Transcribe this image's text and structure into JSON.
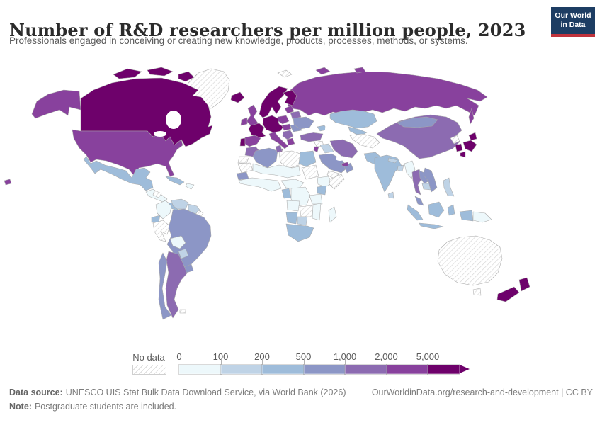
{
  "header": {
    "title": "Number of R&D researchers per million people, 2023",
    "subtitle": "Professionals engaged in conceiving or creating new knowledge, products, processes, methods, or systems."
  },
  "logo": {
    "line1": "Our World",
    "line2": "in Data",
    "bg_color": "#1d3d63",
    "accent_color": "#c0333c"
  },
  "chart_data": {
    "type": "choropleth_map",
    "title": "Number of R&D researchers per million people",
    "year": "2023",
    "legend": {
      "no_data_label": "No data",
      "tick_labels": [
        "0",
        "100",
        "200",
        "500",
        "1,000",
        "2,000",
        "5,000"
      ],
      "ranges": [
        "0-100",
        "100-200",
        "200-500",
        "500-1,000",
        "1,000-2,000",
        "2,000-5,000",
        "5,000+"
      ],
      "colors": [
        "#edf8fb",
        "#bfd3e6",
        "#9ebcda",
        "#8c96c6",
        "#8c6bb1",
        "#88419d",
        "#6e016b"
      ],
      "no_data_pattern": "diagonal-hatch",
      "position": "bottom"
    },
    "regions": [
      {
        "id": "canada",
        "name": "Canada",
        "bucket": 6
      },
      {
        "id": "usa",
        "name": "United States",
        "bucket": 5
      },
      {
        "id": "greenland",
        "name": "Greenland",
        "bucket": "no-data"
      },
      {
        "id": "mexico",
        "name": "Mexico",
        "bucket": 2
      },
      {
        "id": "central-america",
        "name": "Guatemala and Central America",
        "bucket": 0
      },
      {
        "id": "honduras",
        "name": "Honduras",
        "bucket": "no-data"
      },
      {
        "id": "costa-rica-panama",
        "name": "Costa Rica and Panama",
        "bucket": 2
      },
      {
        "id": "cuba",
        "name": "Cuba",
        "bucket": 2
      },
      {
        "id": "hispaniola",
        "name": "Hispaniola",
        "bucket": 0
      },
      {
        "id": "colombia",
        "name": "Colombia",
        "bucket": 0
      },
      {
        "id": "venezuela",
        "name": "Venezuela",
        "bucket": 1
      },
      {
        "id": "guyanas",
        "name": "Guyana and Suriname",
        "bucket": 1
      },
      {
        "id": "french-guiana",
        "name": "French Guiana",
        "bucket": "no-data"
      },
      {
        "id": "ecuador",
        "name": "Ecuador",
        "bucket": 2
      },
      {
        "id": "peru",
        "name": "Peru",
        "bucket": "no-data"
      },
      {
        "id": "brazil",
        "name": "Brazil",
        "bucket": 3
      },
      {
        "id": "bolivia",
        "name": "Bolivia",
        "bucket": 0
      },
      {
        "id": "paraguay",
        "name": "Paraguay",
        "bucket": 1
      },
      {
        "id": "uruguay",
        "name": "Uruguay",
        "bucket": 3
      },
      {
        "id": "argentina",
        "name": "Argentina",
        "bucket": 4
      },
      {
        "id": "chile",
        "name": "Chile",
        "bucket": 3
      },
      {
        "id": "falkland-islands",
        "name": "Falkland Islands",
        "bucket": "no-data"
      },
      {
        "id": "iceland",
        "name": "Iceland",
        "bucket": 6
      },
      {
        "id": "uk",
        "name": "United Kingdom",
        "bucket": 5
      },
      {
        "id": "ireland",
        "name": "Ireland",
        "bucket": 5
      },
      {
        "id": "norway-sweden",
        "name": "Norway and Sweden",
        "bucket": 6
      },
      {
        "id": "finland",
        "name": "Finland",
        "bucket": 6
      },
      {
        "id": "denmark",
        "name": "Denmark",
        "bucket": 6
      },
      {
        "id": "france",
        "name": "France",
        "bucket": 6
      },
      {
        "id": "west-europe",
        "name": "Germany, Benelux, Alps and Czechia",
        "bucket": 6
      },
      {
        "id": "portugal",
        "name": "Portugal",
        "bucket": 6
      },
      {
        "id": "spain",
        "name": "Spain",
        "bucket": 5
      },
      {
        "id": "italy",
        "name": "Italy",
        "bucket": 5
      },
      {
        "id": "poland",
        "name": "Poland",
        "bucket": 5
      },
      {
        "id": "baltics",
        "name": "Baltic states",
        "bucket": 5
      },
      {
        "id": "belarus",
        "name": "Belarus",
        "bucket": 4
      },
      {
        "id": "central-europe",
        "name": "Hungary and Slovakia",
        "bucket": 5
      },
      {
        "id": "romania",
        "name": "Romania",
        "bucket": 3
      },
      {
        "id": "balkans",
        "name": "Western Balkans",
        "bucket": 4
      },
      {
        "id": "greece",
        "name": "Greece",
        "bucket": 5
      },
      {
        "id": "ukraine",
        "name": "Ukraine",
        "bucket": 3
      },
      {
        "id": "russia",
        "name": "Russia",
        "bucket": 5
      },
      {
        "id": "svalbard",
        "name": "Svalbard",
        "bucket": "no-data"
      },
      {
        "id": "kazakhstan",
        "name": "Kazakhstan",
        "bucket": 2
      },
      {
        "id": "central-asia",
        "name": "Uzbekistan and Central Asia",
        "bucket": 2
      },
      {
        "id": "turkmenistan-afghanistan",
        "name": "Turkmenistan and Afghanistan",
        "bucket": "no-data"
      },
      {
        "id": "caucasus",
        "name": "Caucasus",
        "bucket": 2
      },
      {
        "id": "turkey",
        "name": "Turkey",
        "bucket": 4
      },
      {
        "id": "syria",
        "name": "Syria",
        "bucket": "no-data"
      },
      {
        "id": "iraq",
        "name": "Iraq",
        "bucket": 1
      },
      {
        "id": "iran",
        "name": "Iran",
        "bucket": 4
      },
      {
        "id": "saudi-arabia",
        "name": "Saudi Arabia",
        "bucket": 3
      },
      {
        "id": "yemen",
        "name": "Yemen",
        "bucket": "no-data"
      },
      {
        "id": "oman",
        "name": "Oman",
        "bucket": 3
      },
      {
        "id": "uae",
        "name": "United Arab Emirates and Qatar",
        "bucket": 5
      },
      {
        "id": "israel-jordan",
        "name": "Israel and Jordan",
        "bucket": 5
      },
      {
        "id": "morocco",
        "name": "Morocco",
        "bucket": 4
      },
      {
        "id": "western-sahara",
        "name": "Western Sahara",
        "bucket": "no-data"
      },
      {
        "id": "algeria",
        "name": "Algeria",
        "bucket": 3
      },
      {
        "id": "tunisia",
        "name": "Tunisia",
        "bucket": 4
      },
      {
        "id": "libya",
        "name": "Libya",
        "bucket": "no-data"
      },
      {
        "id": "egypt",
        "name": "Egypt",
        "bucket": 2
      },
      {
        "id": "mauritania",
        "name": "Mauritania",
        "bucket": "no-data"
      },
      {
        "id": "sahel",
        "name": "Mali, Niger and Chad",
        "bucket": 0
      },
      {
        "id": "sudan",
        "name": "Sudan",
        "bucket": "no-data"
      },
      {
        "id": "senegal",
        "name": "Senegal",
        "bucket": 3
      },
      {
        "id": "west-africa",
        "name": "West Africa",
        "bucket": 0
      },
      {
        "id": "central-africa",
        "name": "Cameroon and Central Africa",
        "bucket": 0
      },
      {
        "id": "ethiopia",
        "name": "Ethiopia",
        "bucket": 0
      },
      {
        "id": "somalia",
        "name": "Somalia",
        "bucket": "no-data"
      },
      {
        "id": "kenya",
        "name": "Kenya",
        "bucket": 2
      },
      {
        "id": "congo",
        "name": "Congo",
        "bucket": 2
      },
      {
        "id": "drc",
        "name": "Democratic Republic of Congo",
        "bucket": 0
      },
      {
        "id": "tanzania",
        "name": "Tanzania",
        "bucket": 0
      },
      {
        "id": "angola",
        "name": "Angola",
        "bucket": 0
      },
      {
        "id": "zambia-zimbabwe",
        "name": "Zambia and Zimbabwe",
        "bucket": "no-data"
      },
      {
        "id": "mozambique",
        "name": "Mozambique",
        "bucket": 0
      },
      {
        "id": "namibia",
        "name": "Namibia",
        "bucket": 2
      },
      {
        "id": "botswana",
        "name": "Botswana",
        "bucket": 1
      },
      {
        "id": "south-africa",
        "name": "South Africa",
        "bucket": 2
      },
      {
        "id": "madagascar",
        "name": "Madagascar",
        "bucket": 0
      },
      {
        "id": "pakistan",
        "name": "Pakistan",
        "bucket": 2
      },
      {
        "id": "india",
        "name": "India",
        "bucket": 2
      },
      {
        "id": "nepal",
        "name": "Nepal",
        "bucket": 1
      },
      {
        "id": "bangladesh",
        "name": "Bangladesh",
        "bucket": 1
      },
      {
        "id": "sri-lanka",
        "name": "Sri Lanka",
        "bucket": 1
      },
      {
        "id": "myanmar",
        "name": "Myanmar",
        "bucket": 0
      },
      {
        "id": "thailand",
        "name": "Thailand",
        "bucket": 4
      },
      {
        "id": "laos",
        "name": "Laos",
        "bucket": 3
      },
      {
        "id": "cambodia",
        "name": "Cambodia",
        "bucket": 1
      },
      {
        "id": "vietnam",
        "name": "Vietnam",
        "bucket": 3
      },
      {
        "id": "malaysia",
        "name": "Malaysia",
        "bucket": 3
      },
      {
        "id": "indonesia",
        "name": "Indonesia",
        "bucket": 2
      },
      {
        "id": "philippines",
        "name": "Philippines",
        "bucket": 1
      },
      {
        "id": "papua-new-guinea",
        "name": "Papua New Guinea",
        "bucket": 0
      },
      {
        "id": "china",
        "name": "China",
        "bucket": 4
      },
      {
        "id": "mongolia",
        "name": "Mongolia",
        "bucket": 3
      },
      {
        "id": "north-korea",
        "name": "North Korea",
        "bucket": "no-data"
      },
      {
        "id": "south-korea",
        "name": "South Korea",
        "bucket": 6
      },
      {
        "id": "japan",
        "name": "Japan",
        "bucket": 6
      },
      {
        "id": "australia",
        "name": "Australia",
        "bucket": "no-data"
      },
      {
        "id": "tasmania",
        "name": "Tasmania",
        "bucket": "no-data"
      },
      {
        "id": "new-zealand",
        "name": "New Zealand",
        "bucket": 6
      }
    ]
  },
  "footer": {
    "source_label": "Data source:",
    "source_text": "UNESCO UIS Stat Bulk Data Download Service, via World Bank (2026)",
    "link_text": "OurWorldinData.org/research-and-development | CC BY",
    "note_label": "Note:",
    "note_text": "Postgraduate students are included."
  }
}
